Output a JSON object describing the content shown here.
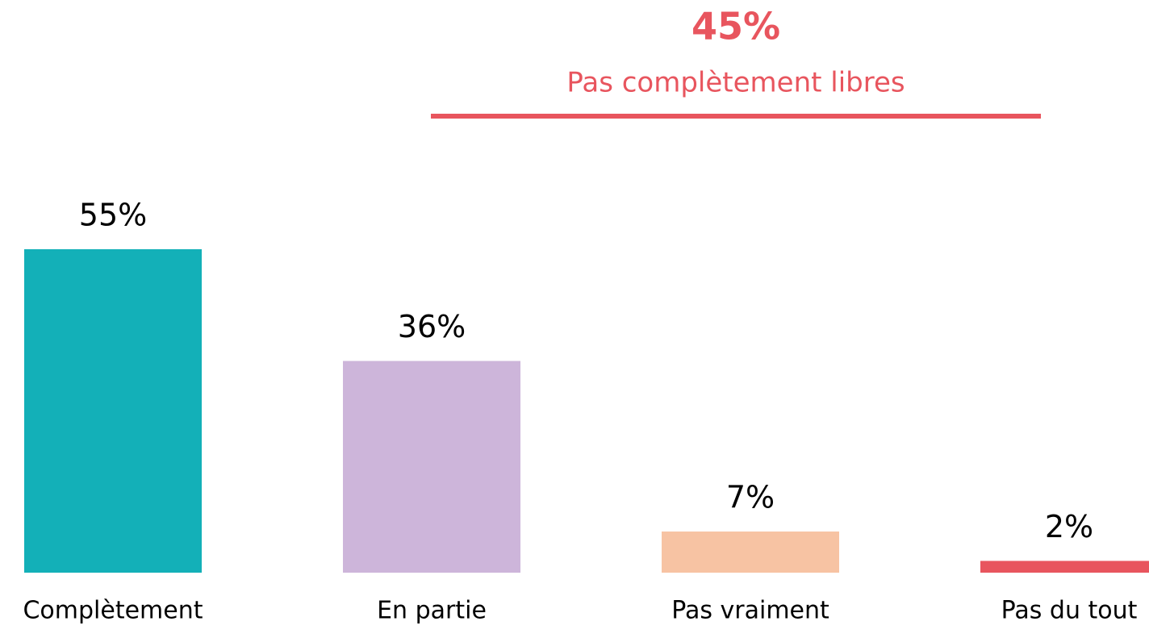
{
  "chart_data": {
    "type": "bar",
    "annotation": {
      "title": "45%",
      "text": "Pas complètement libres",
      "color": "#e8555e"
    },
    "categories": [
      "Complètement",
      "En partie",
      "Pas vraiment",
      "Pas du tout"
    ],
    "values": [
      55,
      36,
      7,
      2
    ],
    "value_labels": [
      "55%",
      "36%",
      "7%",
      "2%"
    ],
    "colors": [
      "#13b0b8",
      "#cdb5da",
      "#f7c3a3",
      "#e8555e"
    ],
    "grid": false
  }
}
